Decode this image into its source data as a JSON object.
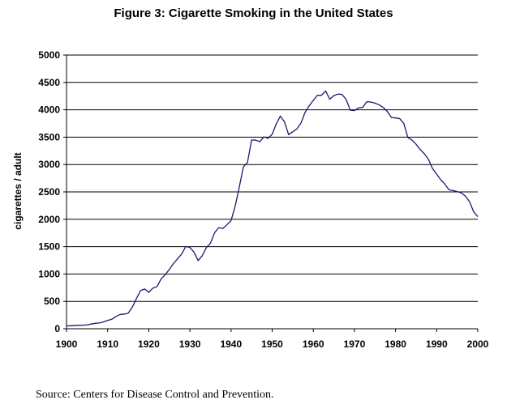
{
  "title": "Figure 3: Cigarette Smoking in the United States",
  "source": "Source: Centers for Disease Control and Prevention.",
  "chart_data": {
    "type": "line",
    "title": "Figure 3: Cigarette Smoking in the United States",
    "xlabel": "",
    "ylabel": "cigarettes / adult",
    "xlim": [
      1900,
      2000
    ],
    "ylim": [
      0,
      5000
    ],
    "x_ticks": [
      "1900",
      "1910",
      "1920",
      "1930",
      "1940",
      "1950",
      "1960",
      "1970",
      "1980",
      "1990",
      "2000"
    ],
    "y_ticks": [
      "0",
      "500",
      "1000",
      "1500",
      "2000",
      "2500",
      "3000",
      "3500",
      "4000",
      "4500",
      "5000"
    ],
    "grid": "horizontal",
    "line_color": "#1a1a6e",
    "series": [
      {
        "x": [
          1900,
          1901,
          1902,
          1903,
          1904,
          1905,
          1906,
          1907,
          1908,
          1909,
          1910,
          1911,
          1912,
          1913,
          1914,
          1915,
          1916,
          1917,
          1918,
          1919,
          1920,
          1921,
          1922,
          1923,
          1924,
          1925,
          1926,
          1927,
          1928,
          1929,
          1930,
          1931,
          1932,
          1933,
          1934,
          1935,
          1936,
          1937,
          1938,
          1939,
          1940,
          1941,
          1942,
          1943,
          1944,
          1945,
          1946,
          1947,
          1948,
          1949,
          1950,
          1951,
          1952,
          1953,
          1954,
          1955,
          1956,
          1957,
          1958,
          1959,
          1960,
          1961,
          1962,
          1963,
          1964,
          1965,
          1966,
          1967,
          1968,
          1969,
          1970,
          1971,
          1972,
          1973,
          1974,
          1975,
          1976,
          1977,
          1978,
          1979,
          1980,
          1981,
          1982,
          1983,
          1984,
          1985,
          1986,
          1987,
          1988,
          1989,
          1990,
          1991,
          1992,
          1993,
          1994,
          1995,
          1996,
          1997,
          1998,
          1999,
          2000
        ],
        "values": [
          54,
          53,
          60,
          64,
          66,
          70,
          86,
          99,
          105,
          125,
          151,
          173,
          223,
          260,
          267,
          285,
          395,
          551,
          697,
          727,
          665,
          742,
          770,
          911,
          985,
          1085,
          1191,
          1279,
          1366,
          1504,
          1485,
          1399,
          1245,
          1334,
          1483,
          1564,
          1754,
          1847,
          1830,
          1900,
          1976,
          2236,
          2585,
          2956,
          3039,
          3449,
          3446,
          3416,
          3505,
          3480,
          3552,
          3744,
          3886,
          3778,
          3546,
          3597,
          3650,
          3755,
          3953,
          4073,
          4171,
          4266,
          4265,
          4345,
          4194,
          4258,
          4287,
          4280,
          4186,
          3993,
          3985,
          4037,
          4043,
          4148,
          4141,
          4122,
          4091,
          4043,
          3970,
          3861,
          3851,
          3840,
          3753,
          3494,
          3446,
          3370,
          3274,
          3197,
          3096,
          2926,
          2826,
          2720,
          2641,
          2539,
          2524,
          2505,
          2482,
          2423,
          2320,
          2136,
          2049
        ]
      }
    ]
  }
}
